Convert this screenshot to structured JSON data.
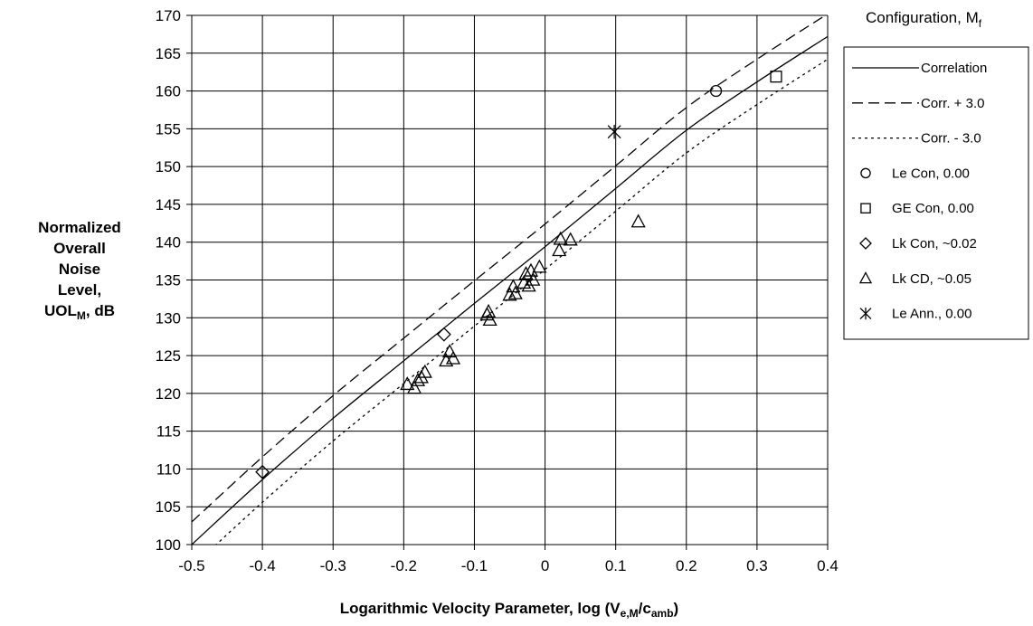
{
  "chart_data": {
    "type": "scatter",
    "title": "",
    "xlabel": {
      "main": "Logarithmic Velocity Parameter, log (V",
      "sub": "e,M",
      "mid": "/c",
      "sub2": "amb",
      "end": ")"
    },
    "ylabel": {
      "lines": [
        "Normalized",
        "Overall",
        "Noise",
        "Level,"
      ],
      "last_main": "UOL",
      "last_sub": "M",
      "last_end": ", dB"
    },
    "xlim": [
      -0.5,
      0.4
    ],
    "ylim": [
      100,
      170
    ],
    "xticks": [
      "-0.5",
      "-0.4",
      "-0.3",
      "-0.2",
      "-0.1",
      "0",
      "0.1",
      "0.2",
      "0.3",
      "0.4"
    ],
    "yticks": [
      "100",
      "105",
      "110",
      "115",
      "120",
      "125",
      "130",
      "135",
      "140",
      "145",
      "150",
      "155",
      "160",
      "165",
      "170"
    ],
    "grid": true,
    "legend": {
      "title_main": "Configuration, M",
      "title_sub": "f",
      "placement": "right"
    },
    "curves": [
      {
        "name": "Correlation",
        "style": "solid",
        "x": [
          -0.5,
          -0.4,
          -0.3,
          -0.2,
          -0.1,
          0.0,
          0.1,
          0.2,
          0.3,
          0.4
        ],
        "y": [
          100.0,
          108.6,
          116.7,
          124.3,
          131.9,
          139.4,
          147.1,
          154.8,
          161.2,
          167.2
        ]
      },
      {
        "name": "Corr. + 3.0",
        "style": "dashed",
        "x": [
          -0.5,
          -0.4,
          -0.3,
          -0.2,
          -0.1,
          0.0,
          0.1,
          0.2,
          0.3,
          0.4
        ],
        "y": [
          103.0,
          111.6,
          119.7,
          127.3,
          134.9,
          142.4,
          150.1,
          157.8,
          164.2,
          170.2
        ]
      },
      {
        "name": "Corr. - 3.0",
        "style": "dotted",
        "x": [
          -0.5,
          -0.4,
          -0.3,
          -0.2,
          -0.1,
          0.0,
          0.1,
          0.2,
          0.3,
          0.4
        ],
        "y": [
          97.0,
          105.6,
          113.7,
          121.3,
          128.9,
          136.4,
          144.1,
          151.8,
          158.2,
          164.2
        ]
      }
    ],
    "series": [
      {
        "name": "Le Con, 0.00",
        "marker": "circle",
        "points": [
          [
            0.242,
            160.0
          ]
        ]
      },
      {
        "name": "GE Con, 0.00",
        "marker": "square",
        "points": [
          [
            0.327,
            161.9
          ]
        ]
      },
      {
        "name": "Lk Con, ~0.02",
        "marker": "diamond",
        "points": [
          [
            -0.4,
            109.6
          ],
          [
            -0.143,
            127.8
          ]
        ]
      },
      {
        "name": "Lk CD, ~0.05",
        "marker": "triangle",
        "points": [
          [
            -0.195,
            121.2
          ],
          [
            -0.185,
            120.7
          ],
          [
            -0.18,
            121.7
          ],
          [
            -0.175,
            122.1
          ],
          [
            -0.17,
            122.8
          ],
          [
            -0.14,
            124.3
          ],
          [
            -0.135,
            125.5
          ],
          [
            -0.13,
            124.6
          ],
          [
            -0.082,
            130.4
          ],
          [
            -0.078,
            129.7
          ],
          [
            -0.08,
            130.8
          ],
          [
            -0.05,
            133.0
          ],
          [
            -0.045,
            134.1
          ],
          [
            -0.042,
            133.2
          ],
          [
            -0.03,
            134.6
          ],
          [
            -0.027,
            135.8
          ],
          [
            -0.023,
            134.2
          ],
          [
            -0.02,
            136.2
          ],
          [
            -0.017,
            135.0
          ],
          [
            -0.008,
            136.7
          ],
          [
            0.02,
            138.9
          ],
          [
            0.022,
            140.4
          ],
          [
            0.036,
            140.3
          ],
          [
            0.132,
            142.7
          ]
        ]
      },
      {
        "name": "Le Ann., 0.00",
        "marker": "asterisk",
        "points": [
          [
            0.098,
            154.6
          ]
        ]
      }
    ]
  }
}
